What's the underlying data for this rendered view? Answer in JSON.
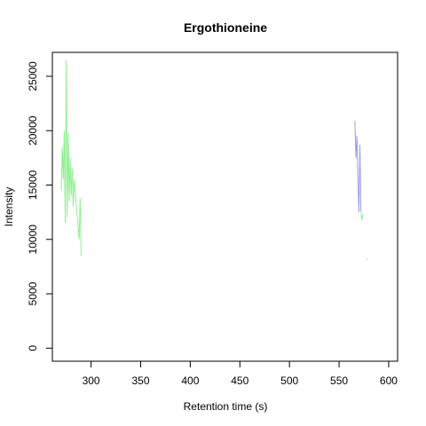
{
  "chart_data": {
    "type": "line",
    "title": "Ergothioneine",
    "xlabel": "Retention time (s)",
    "ylabel": "Intensity",
    "xlim": [
      261,
      609
    ],
    "ylim": [
      -1200,
      27200
    ],
    "x_ticks": [
      300,
      350,
      400,
      450,
      500,
      550,
      600
    ],
    "y_ticks": [
      0,
      5000,
      10000,
      15000,
      20000,
      25000
    ],
    "x_tick_labels": [
      "300",
      "350",
      "400",
      "450",
      "500",
      "550",
      "600"
    ],
    "y_tick_labels": [
      "0",
      "5000",
      "10000",
      "15000",
      "20000",
      "25000"
    ],
    "grid": false,
    "legend": "none",
    "series": [
      {
        "color": "#90ee90",
        "points": [
          [
            270,
            14500
          ],
          [
            271,
            18500
          ],
          [
            272,
            15500
          ],
          [
            273,
            20000
          ],
          [
            274,
            11500
          ],
          [
            275,
            26500
          ],
          [
            276,
            12000
          ],
          [
            277,
            19800
          ],
          [
            278,
            13500
          ],
          [
            279,
            17500
          ],
          [
            280,
            14000
          ],
          [
            281,
            16500
          ],
          [
            282,
            13000
          ],
          [
            283,
            15500
          ],
          [
            288,
            10000
          ],
          [
            289,
            13800
          ],
          [
            290,
            8500
          ]
        ]
      },
      {
        "color": "#9a9aee",
        "points": [
          [
            566,
            20900
          ],
          [
            567,
            17500
          ],
          [
            568,
            19500
          ],
          [
            569,
            15500
          ],
          [
            570,
            12500
          ],
          [
            571,
            18700
          ],
          [
            572,
            12600
          ]
        ]
      },
      {
        "color": "#90ee90",
        "points": [
          [
            572,
            12600
          ],
          [
            573,
            11800
          ],
          [
            574,
            12300
          ]
        ]
      },
      {
        "color": "#bbbbbb",
        "points": [
          [
            578,
            8200
          ],
          [
            579,
            8100
          ]
        ]
      }
    ]
  }
}
